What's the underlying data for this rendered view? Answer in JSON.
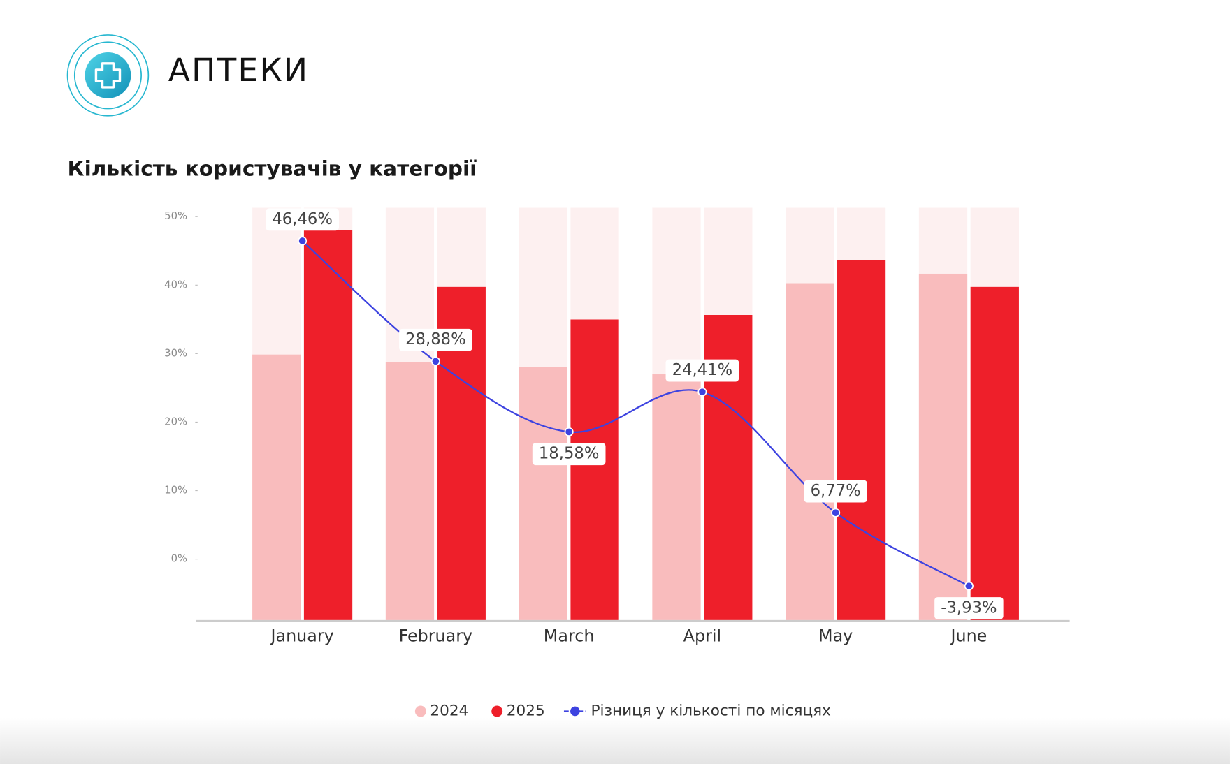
{
  "header": {
    "title": "АПТЕКИ"
  },
  "chart_data": {
    "type": "bar",
    "title": "Кількість користувачів у категорії",
    "categories": [
      "January",
      "February",
      "March",
      "April",
      "May",
      "June"
    ],
    "track_color": "#fdf0f0",
    "series": [
      {
        "name": "2024",
        "color": "#f9bcbd",
        "axis": "y2",
        "values": [
          64.4,
          62.5,
          61.3,
          59.6,
          81.7,
          84.0
        ]
      },
      {
        "name": "2025",
        "color": "#ee1f2a",
        "axis": "y2",
        "values": [
          94.6,
          80.8,
          72.9,
          74.0,
          87.3,
          80.8
        ]
      },
      {
        "name": "Різниця у кількості по місяцях",
        "type": "line",
        "color": "#3d43e0",
        "values": [
          46.46,
          28.88,
          18.58,
          24.41,
          6.77,
          -3.93
        ],
        "value_labels": [
          "46,46%",
          "28,88%",
          "18,58%",
          "24,41%",
          "6,77%",
          "-3,93%"
        ]
      }
    ],
    "ylim": [
      -8.9,
      51.3
    ],
    "yticks": [
      {
        "value": 0,
        "label": "0%"
      },
      {
        "value": 10,
        "label": "10%"
      },
      {
        "value": 20,
        "label": "20%"
      },
      {
        "value": 30,
        "label": "30%"
      },
      {
        "value": 40,
        "label": "40%"
      },
      {
        "value": 50,
        "label": "50%"
      }
    ],
    "y2lim": [
      0,
      100
    ]
  }
}
